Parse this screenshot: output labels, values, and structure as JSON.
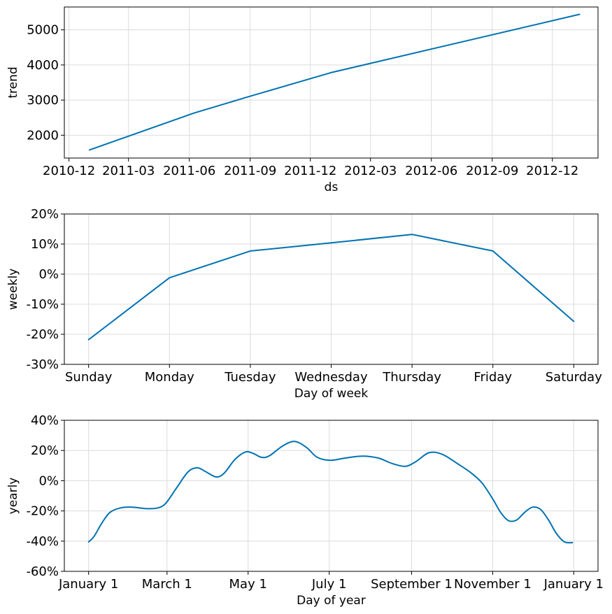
{
  "chart_data": [
    {
      "type": "line",
      "xlabel": "ds",
      "ylabel": "trend",
      "x_ticks": [
        "2010-12",
        "2011-03",
        "2011-06",
        "2011-09",
        "2011-12",
        "2012-03",
        "2012-06",
        "2012-09",
        "2012-12"
      ],
      "y_ticks": [
        "2000",
        "3000",
        "4000",
        "5000"
      ],
      "ylim": [
        1350,
        5650
      ],
      "xlim": [
        "2010-11-24",
        "2013-02-08"
      ],
      "grid": true,
      "series": [
        {
          "color": "#0072B2",
          "points": [
            {
              "x": "2011-01-01",
              "y": 1580
            },
            {
              "x": "2011-06-08",
              "y": 2630
            },
            {
              "x": "2011-09-01",
              "y": 3110
            },
            {
              "x": "2012-01-01",
              "y": 3780
            },
            {
              "x": "2013-01-11",
              "y": 5440
            }
          ]
        }
      ]
    },
    {
      "type": "line",
      "xlabel": "Day of week",
      "ylabel": "weekly",
      "x_ticks": [
        "Sunday",
        "Monday",
        "Tuesday",
        "Wednesday",
        "Thursday",
        "Friday",
        "Saturday"
      ],
      "y_ticks": [
        "-30%",
        "-20%",
        "-10%",
        "0%",
        "10%",
        "20%"
      ],
      "ylim": [
        -30,
        20
      ],
      "grid": true,
      "series": [
        {
          "color": "#0072B2",
          "values": [
            -21.8,
            -1.2,
            7.7,
            10.4,
            13.2,
            7.7,
            -15.7
          ]
        }
      ]
    },
    {
      "type": "line",
      "xlabel": "Day of year",
      "ylabel": "yearly",
      "x_ticks": [
        "January 1",
        "March 1",
        "May 1",
        "July 1",
        "September 1",
        "November 1",
        "January 1"
      ],
      "x_tick_days": [
        0,
        59,
        120,
        181,
        243,
        304,
        365
      ],
      "y_ticks": [
        "-60%",
        "-40%",
        "-20%",
        "0%",
        "20%",
        "40%"
      ],
      "ylim": [
        -60,
        40
      ],
      "grid": true,
      "series": [
        {
          "color": "#0072B2",
          "points": [
            {
              "x": 0,
              "y": -40.5
            },
            {
              "x": 4,
              "y": -37
            },
            {
              "x": 10,
              "y": -28
            },
            {
              "x": 16,
              "y": -21
            },
            {
              "x": 24,
              "y": -18
            },
            {
              "x": 33,
              "y": -17.5
            },
            {
              "x": 44,
              "y": -18.5
            },
            {
              "x": 52,
              "y": -18
            },
            {
              "x": 58,
              "y": -15
            },
            {
              "x": 66,
              "y": -5
            },
            {
              "x": 75,
              "y": 6
            },
            {
              "x": 82,
              "y": 8.5
            },
            {
              "x": 88,
              "y": 6
            },
            {
              "x": 96,
              "y": 2.5
            },
            {
              "x": 102,
              "y": 5
            },
            {
              "x": 110,
              "y": 14
            },
            {
              "x": 118,
              "y": 19
            },
            {
              "x": 124,
              "y": 18
            },
            {
              "x": 130,
              "y": 15.5
            },
            {
              "x": 136,
              "y": 16.5
            },
            {
              "x": 146,
              "y": 23
            },
            {
              "x": 155,
              "y": 26
            },
            {
              "x": 164,
              "y": 22
            },
            {
              "x": 172,
              "y": 15.5
            },
            {
              "x": 182,
              "y": 13.5
            },
            {
              "x": 193,
              "y": 15
            },
            {
              "x": 206,
              "y": 16.3
            },
            {
              "x": 218,
              "y": 15
            },
            {
              "x": 228,
              "y": 11.5
            },
            {
              "x": 238,
              "y": 9.5
            },
            {
              "x": 246,
              "y": 12.5
            },
            {
              "x": 256,
              "y": 18.5
            },
            {
              "x": 266,
              "y": 17.5
            },
            {
              "x": 278,
              "y": 11
            },
            {
              "x": 288,
              "y": 5
            },
            {
              "x": 296,
              "y": -1.5
            },
            {
              "x": 304,
              "y": -12
            },
            {
              "x": 310,
              "y": -21
            },
            {
              "x": 316,
              "y": -26.5
            },
            {
              "x": 322,
              "y": -26
            },
            {
              "x": 328,
              "y": -21
            },
            {
              "x": 334,
              "y": -17.5
            },
            {
              "x": 340,
              "y": -19
            },
            {
              "x": 346,
              "y": -26
            },
            {
              "x": 352,
              "y": -35
            },
            {
              "x": 358,
              "y": -40.5
            },
            {
              "x": 364,
              "y": -41
            }
          ]
        }
      ]
    }
  ]
}
